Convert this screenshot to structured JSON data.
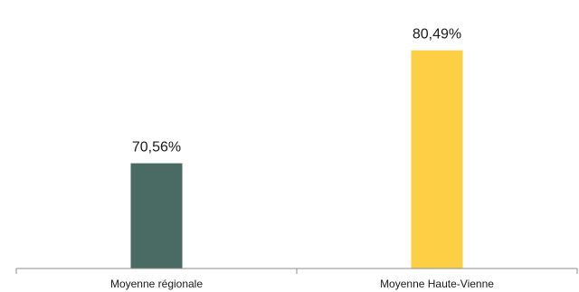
{
  "chart_data": {
    "type": "bar",
    "categories": [
      "Moyenne régionale",
      "Moyenne Haute-Vienne"
    ],
    "values": [
      70.56,
      80.49
    ],
    "value_labels": [
      "70,56%",
      "80,49%"
    ],
    "colors": [
      "#4a6b63",
      "#fccf45"
    ],
    "title": "",
    "xlabel": "",
    "ylabel": "",
    "ylim": [
      61.3,
      81.5
    ],
    "grid": false,
    "legend": "none"
  }
}
